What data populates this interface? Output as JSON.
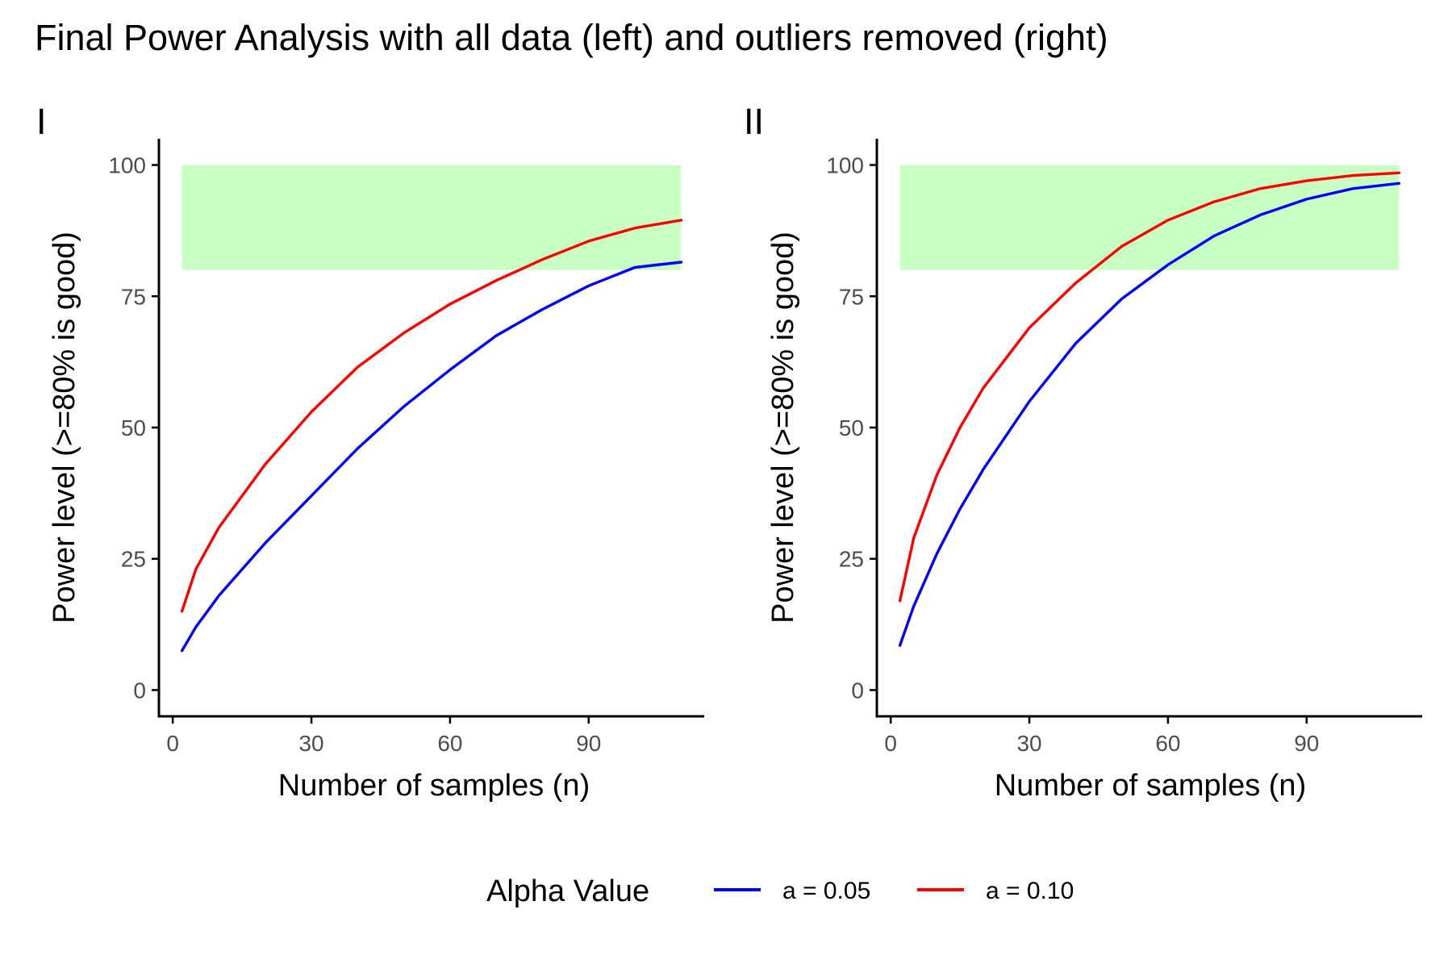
{
  "figure": {
    "title": "Final Power Analysis with all data (left) and outliers removed (right)"
  },
  "legend": {
    "title": "Alpha Value",
    "entries": [
      {
        "label": "a = 0.05",
        "color": "#0000ff"
      },
      {
        "label": "a = 0.10",
        "color": "#ff0000"
      }
    ]
  },
  "colors": {
    "good_zone": "#c8ffc3",
    "axis": "#000000"
  },
  "chart_data": [
    {
      "type": "line",
      "panel_tag": "I",
      "xlabel": "Number of samples (n)",
      "ylabel": "Power level (>=80% is good)",
      "xlim": [
        -3,
        115
      ],
      "ylim": [
        -5,
        105
      ],
      "xticks": [
        0,
        30,
        60,
        90
      ],
      "yticks": [
        0,
        25,
        50,
        75,
        100
      ],
      "grid": false,
      "shaded_band": {
        "x": [
          2,
          110
        ],
        "y": [
          80,
          100
        ]
      },
      "series": [
        {
          "name": "a = 0.05",
          "color": "#0000ff",
          "x": [
            2,
            5,
            10,
            20,
            30,
            40,
            50,
            60,
            70,
            80,
            90,
            100,
            110
          ],
          "y": [
            7.5,
            12,
            18,
            28,
            37,
            46,
            54,
            61,
            67.5,
            72.5,
            77,
            80.5,
            81.5
          ]
        },
        {
          "name": "a = 0.10",
          "color": "#ff0000",
          "x": [
            2,
            5,
            10,
            20,
            30,
            40,
            50,
            60,
            70,
            80,
            90,
            100,
            110
          ],
          "y": [
            15,
            23,
            31,
            43,
            53,
            61.5,
            68,
            73.5,
            78,
            82,
            85.5,
            88,
            89.5
          ]
        }
      ]
    },
    {
      "type": "line",
      "panel_tag": "II",
      "xlabel": "Number of samples (n)",
      "ylabel": "Power level (>=80% is good)",
      "xlim": [
        -3,
        115
      ],
      "ylim": [
        -5,
        105
      ],
      "xticks": [
        0,
        30,
        60,
        90
      ],
      "yticks": [
        0,
        25,
        50,
        75,
        100
      ],
      "grid": false,
      "shaded_band": {
        "x": [
          2,
          110
        ],
        "y": [
          80,
          100
        ]
      },
      "series": [
        {
          "name": "a = 0.05",
          "color": "#0000ff",
          "x": [
            2,
            5,
            10,
            15,
            20,
            30,
            40,
            50,
            60,
            70,
            80,
            90,
            100,
            110
          ],
          "y": [
            8.5,
            16,
            26,
            34.5,
            42,
            55,
            66,
            74.5,
            81,
            86.5,
            90.5,
            93.5,
            95.5,
            96.5
          ]
        },
        {
          "name": "a = 0.10",
          "color": "#ff0000",
          "x": [
            2,
            5,
            10,
            15,
            20,
            30,
            40,
            50,
            60,
            70,
            80,
            90,
            100,
            110
          ],
          "y": [
            17,
            29,
            41,
            50,
            57.5,
            69,
            77.5,
            84.5,
            89.5,
            93,
            95.5,
            97,
            98,
            98.5
          ]
        }
      ]
    }
  ]
}
